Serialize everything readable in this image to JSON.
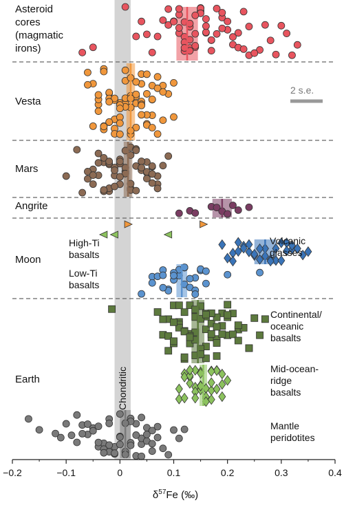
{
  "chart_data": {
    "type": "scatter",
    "title": "",
    "xlabel": "δ57Fe (‰)",
    "xlabel_parts": {
      "symbol": "δ",
      "superscript": "57",
      "element": "Fe",
      "unit": "(‰)"
    },
    "xlim": [
      -0.2,
      0.4
    ],
    "xticks": [
      "−0.2",
      "−0.1",
      "0",
      "0.1",
      "0.2",
      "0.3",
      "0.4"
    ],
    "xtick_values": [
      -0.2,
      -0.1,
      0,
      0.1,
      0.2,
      0.3,
      0.4
    ],
    "chondritic_band": {
      "label": "Chondritic",
      "range": [
        -0.01,
        0.02
      ],
      "color": "#d4d4d4"
    },
    "scale_bar": {
      "label": "2 s.e.",
      "half_width": 0.03,
      "color": "#999999"
    },
    "groups": [
      {
        "name": "Asteroid cores (magmatic irons)",
        "label_lines": [
          "Asteroid",
          "cores",
          "(magmatic",
          "irons)"
        ],
        "ymin": 0,
        "ymax": 90
      },
      {
        "name": "Vesta",
        "label_lines": [
          "Vesta"
        ],
        "ymin": 90,
        "ymax": 205
      },
      {
        "name": "Mars",
        "label_lines": [
          "Mars"
        ],
        "ymin": 205,
        "ymax": 287
      },
      {
        "name": "Angrite",
        "label_lines": [
          "Angrite"
        ],
        "ymin": 287,
        "ymax": 318
      },
      {
        "name": "Moon",
        "label_lines": [
          "Moon"
        ],
        "ymin": 318,
        "ymax": 434
      },
      {
        "name": "Earth",
        "label_lines": [
          "Earth"
        ],
        "ymin": 434,
        "ymax": 668
      }
    ],
    "annotations": [
      {
        "lines": [
          "Volcanic",
          "glasses"
        ]
      },
      {
        "lines": [
          "High-Ti",
          "basalts"
        ]
      },
      {
        "lines": [
          "Low-Ti",
          "basalts"
        ]
      },
      {
        "lines": [
          "Continental/",
          "oceanic",
          "basalts"
        ]
      },
      {
        "lines": [
          "Mid-ocean-",
          "ridge",
          "basalts"
        ]
      },
      {
        "lines": [
          "Mantle",
          "peridotites"
        ]
      }
    ],
    "series": [
      {
        "group": "Asteroid cores (magmatic irons)",
        "marker": "circle",
        "color": "#e8555f",
        "mean": 0.125,
        "band_halfwidth": 0.02,
        "x": [
          -0.07,
          -0.05,
          0.01,
          0.03,
          0.05,
          0.07,
          0.09,
          0.11,
          0.12,
          0.13,
          0.14,
          0.15,
          0.16,
          0.15,
          0.13,
          0.12,
          0.11,
          0.1,
          0.12,
          0.14,
          0.15,
          0.16,
          0.13,
          0.11,
          0.09,
          0.12,
          0.13,
          0.14,
          0.15,
          0.17,
          0.19,
          0.2,
          0.21,
          0.22,
          0.23,
          0.16,
          0.17,
          0.18,
          0.19,
          0.24,
          0.26,
          0.28,
          0.3,
          0.32,
          0.04,
          0.06,
          0.08,
          0.12,
          0.14,
          0.1,
          0.11,
          0.13,
          0.16,
          0.18,
          0.2,
          0.22,
          0.24,
          0.17,
          0.19,
          0.21,
          0.23,
          0.25,
          0.27,
          0.29,
          0.31,
          0.33
        ]
      },
      {
        "group": "Vesta",
        "marker": "circle",
        "color": "#f0973c",
        "mean": 0.02,
        "band_halfwidth": 0.008,
        "x": [
          -0.06,
          -0.04,
          -0.03,
          -0.02,
          -0.01,
          0.0,
          0.01,
          0.02,
          0.03,
          0.04,
          0.05,
          0.06,
          0.07,
          0.08,
          0.09,
          0.1,
          -0.05,
          -0.03,
          -0.01,
          0.01,
          0.03,
          0.05,
          0.07,
          -0.04,
          -0.02,
          0.0,
          0.02,
          0.04,
          0.06,
          -0.03,
          -0.01,
          0.01,
          0.03,
          0.05,
          -0.02,
          0.0,
          0.02,
          0.04,
          -0.06,
          -0.04,
          -0.02,
          0.0,
          0.02,
          0.04,
          0.06,
          -0.03,
          -0.01,
          0.01,
          0.03,
          0.05,
          0.07,
          -0.05,
          -0.03,
          -0.01,
          0.01,
          0.03,
          0.05,
          -0.04,
          -0.02,
          0.0,
          0.02,
          0.04,
          0.06,
          0.08,
          -0.02,
          0.0,
          0.02,
          0.04,
          0.06,
          0.08,
          0.1
        ]
      },
      {
        "group": "Mars",
        "marker": "circle",
        "color": "#8c6b54",
        "mean": 0.015,
        "band_halfwidth": 0.008,
        "x": [
          -0.1,
          -0.07,
          -0.05,
          -0.03,
          -0.02,
          -0.01,
          0.0,
          0.01,
          0.02,
          0.03,
          0.04,
          0.05,
          0.06,
          0.07,
          0.08,
          -0.06,
          -0.04,
          -0.02,
          0.0,
          0.02,
          0.04,
          0.06,
          -0.05,
          -0.03,
          -0.01,
          0.01,
          0.03,
          0.05,
          0.07,
          -0.04,
          -0.02,
          0.0,
          0.02,
          0.04,
          -0.08,
          -0.06,
          -0.04,
          -0.02,
          0.0,
          0.02,
          0.04,
          0.06,
          -0.05,
          -0.03,
          -0.01,
          0.01,
          0.03,
          0.05,
          0.07,
          0.09,
          -0.03,
          -0.01,
          0.01,
          0.03,
          0.05,
          -0.02,
          0.0,
          0.02,
          0.04,
          0.06
        ]
      },
      {
        "group": "Angrite",
        "marker": "circle",
        "color": "#7a3d62",
        "mean": 0.19,
        "band_halfwidth": 0.018,
        "x": [
          0.11,
          0.13,
          0.14,
          0.17,
          0.18,
          0.19,
          0.2,
          0.21,
          0.22,
          0.24
        ]
      },
      {
        "group": "High-Ti basalts",
        "marker": "triangle-left",
        "color": "#8cc25e",
        "x": [
          -0.03,
          -0.01,
          0.09
        ]
      },
      {
        "group": "High-Ti basalts",
        "marker": "triangle-right",
        "color": "#f0973c",
        "x": [
          0.015,
          0.155
        ]
      },
      {
        "group": "Volcanic glasses",
        "marker": "diamond",
        "color": "#3a74b8",
        "mean": 0.27,
        "band_halfwidth": 0.02,
        "x": [
          0.19,
          0.2,
          0.21,
          0.22,
          0.23,
          0.24,
          0.25,
          0.26,
          0.27,
          0.28,
          0.29,
          0.3,
          0.31,
          0.32,
          0.33,
          0.35,
          0.21,
          0.23,
          0.25,
          0.27,
          0.29,
          0.31,
          0.22,
          0.24,
          0.26,
          0.28,
          0.3,
          0.32,
          0.34
        ]
      },
      {
        "group": "Low-Ti basalts",
        "marker": "circle",
        "color": "#5b93cf",
        "mean": 0.115,
        "band_halfwidth": 0.01,
        "x": [
          0.04,
          0.06,
          0.08,
          0.09,
          0.1,
          0.11,
          0.12,
          0.13,
          0.14,
          0.15,
          0.16,
          0.07,
          0.09,
          0.11,
          0.13,
          0.15,
          0.08,
          0.1,
          0.12,
          0.14,
          0.06,
          0.08,
          0.1,
          0.12,
          0.14,
          0.16,
          0.2,
          0.26
        ]
      },
      {
        "group": "Continental/oceanic basalts",
        "marker": "square",
        "color": "#5d7a3e",
        "mean": 0.145,
        "band_halfwidth": 0.012,
        "x": [
          -0.015,
          0.07,
          0.08,
          0.09,
          0.1,
          0.11,
          0.12,
          0.13,
          0.14,
          0.15,
          0.16,
          0.17,
          0.18,
          0.19,
          0.2,
          0.21,
          0.22,
          0.23,
          0.24,
          0.25,
          0.26,
          0.27,
          0.1,
          0.12,
          0.14,
          0.16,
          0.18,
          0.2,
          0.22,
          0.11,
          0.13,
          0.15,
          0.17,
          0.19,
          0.09,
          0.11,
          0.13,
          0.15,
          0.17,
          0.08,
          0.1,
          0.12,
          0.14,
          0.16,
          0.18,
          0.2,
          0.12,
          0.14,
          0.16,
          0.18,
          0.1,
          0.12,
          0.14,
          0.16,
          0.09,
          0.11,
          0.13,
          0.15,
          0.17,
          0.19,
          0.21,
          0.13,
          0.15,
          0.17,
          0.14,
          0.16,
          0.18,
          0.2,
          0.22,
          0.24
        ]
      },
      {
        "group": "Mid-ocean-ridge basalts",
        "marker": "diamond",
        "color": "#8cc25e",
        "mean": 0.155,
        "band_halfwidth": 0.007,
        "x": [
          0.11,
          0.12,
          0.13,
          0.14,
          0.15,
          0.16,
          0.17,
          0.18,
          0.19,
          0.2,
          0.12,
          0.14,
          0.16,
          0.18,
          0.13,
          0.15,
          0.17,
          0.19,
          0.11,
          0.13,
          0.15,
          0.17,
          0.14,
          0.16,
          0.18,
          0.12,
          0.14,
          0.16,
          0.13,
          0.15,
          0.17,
          0.19,
          0.15,
          0.17
        ]
      },
      {
        "group": "Mantle peridotites",
        "marker": "circle",
        "color": "#7a7a7a",
        "mean": 0.01,
        "band_halfwidth": 0.01,
        "x": [
          -0.17,
          -0.15,
          -0.12,
          -0.1,
          -0.08,
          -0.06,
          -0.04,
          -0.02,
          0.0,
          0.02,
          0.04,
          0.06,
          0.08,
          0.1,
          0.12,
          -0.09,
          -0.07,
          -0.05,
          -0.03,
          -0.01,
          0.01,
          0.03,
          0.05,
          0.07,
          -0.11,
          -0.06,
          -0.04,
          -0.02,
          0.0,
          0.02,
          0.04,
          0.06,
          -0.08,
          -0.05,
          -0.03,
          -0.01,
          0.01,
          0.03,
          0.05,
          0.09,
          -0.07,
          -0.04,
          -0.02,
          0.0,
          0.02,
          0.04,
          0.06,
          -0.03,
          -0.01,
          0.01,
          0.03,
          0.05,
          0.07,
          -0.02,
          0.0,
          0.02,
          0.04,
          0.11
        ]
      }
    ]
  }
}
